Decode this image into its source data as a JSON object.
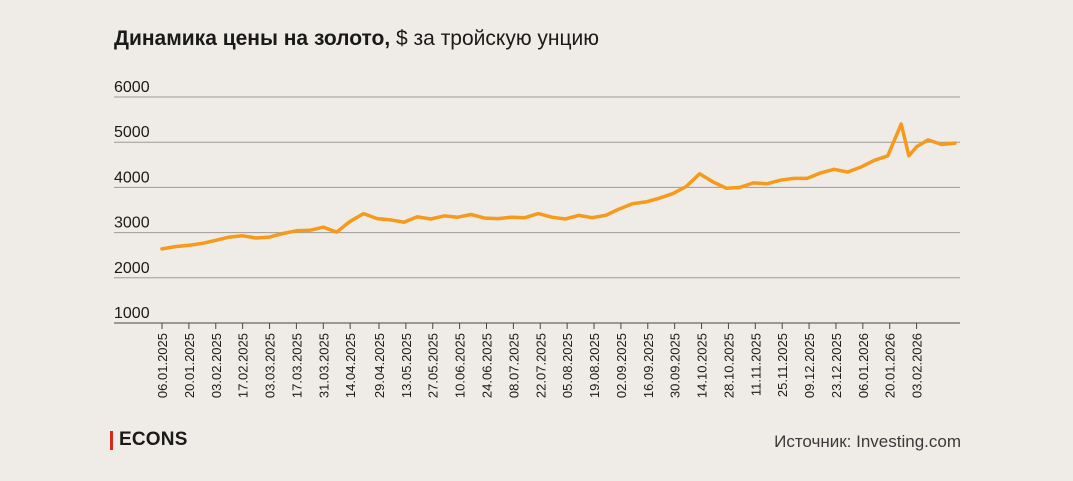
{
  "title_bold": "Динамика цены на золото,",
  "title_rest": " $ за тройскую унцию",
  "logo": "ECONS",
  "source": "Источник: Investing.com",
  "colors": {
    "line": "#f59a1b",
    "grid": "#9e9a95",
    "background": "#efebe6",
    "logo_bar": "#d42a1c"
  },
  "chart_data": {
    "type": "line",
    "title": "Динамика цены на золото, $ за тройскую унцию",
    "xlabel": "",
    "ylabel": "",
    "ylim": [
      1000,
      6000
    ],
    "yticks": [
      1000,
      2000,
      3000,
      4000,
      5000,
      6000
    ],
    "grid": true,
    "xlim": [
      "2025-01-06",
      "2026-02-23"
    ],
    "xticks": [
      "06.01.2025",
      "20.01.2025",
      "03.02.2025",
      "17.02.2025",
      "03.03.2025",
      "17.03.2025",
      "31.03.2025",
      "14.04.2025",
      "29.04.2025",
      "13.05.2025",
      "27.05.2025",
      "10.06.2025",
      "24.06.2025",
      "08.07.2025",
      "22.07.2025",
      "05.08.2025",
      "19.08.2025",
      "02.09.2025",
      "16.09.2025",
      "30.09.2025",
      "14.10.2025",
      "28.10.2025",
      "11.11.2025",
      "25.11.2025",
      "09.12.2025",
      "23.12.2025",
      "06.01.2026",
      "20.01.2026",
      "03.02.2026"
    ],
    "series": [
      {
        "x": [
          "2025-01-06",
          "2025-01-13",
          "2025-01-20",
          "2025-01-27",
          "2025-02-03",
          "2025-02-10",
          "2025-02-17",
          "2025-02-24",
          "2025-03-03",
          "2025-03-10",
          "2025-03-17",
          "2025-03-24",
          "2025-03-31",
          "2025-04-07",
          "2025-04-14",
          "2025-04-21",
          "2025-04-28",
          "2025-05-05",
          "2025-05-12",
          "2025-05-19",
          "2025-05-26",
          "2025-06-02",
          "2025-06-09",
          "2025-06-16",
          "2025-06-23",
          "2025-06-30",
          "2025-07-07",
          "2025-07-14",
          "2025-07-21",
          "2025-07-28",
          "2025-08-04",
          "2025-08-11",
          "2025-08-18",
          "2025-08-25",
          "2025-09-01",
          "2025-09-08",
          "2025-09-15",
          "2025-09-22",
          "2025-09-29",
          "2025-10-06",
          "2025-10-13",
          "2025-10-20",
          "2025-10-27",
          "2025-11-03",
          "2025-11-10",
          "2025-11-17",
          "2025-11-24",
          "2025-12-01",
          "2025-12-08",
          "2025-12-15",
          "2025-12-22",
          "2025-12-29",
          "2026-01-05",
          "2026-01-12",
          "2026-01-19",
          "2026-01-26",
          "2026-01-30",
          "2026-02-03",
          "2026-02-09",
          "2026-02-16",
          "2026-02-23"
        ],
        "values": [
          2640,
          2690,
          2720,
          2760,
          2830,
          2900,
          2930,
          2880,
          2900,
          2980,
          3040,
          3050,
          3120,
          3010,
          3250,
          3420,
          3310,
          3280,
          3230,
          3350,
          3300,
          3370,
          3340,
          3400,
          3320,
          3310,
          3340,
          3330,
          3420,
          3340,
          3300,
          3380,
          3330,
          3380,
          3520,
          3640,
          3680,
          3760,
          3860,
          4020,
          4300,
          4120,
          3980,
          4000,
          4100,
          4080,
          4160,
          4200,
          4200,
          4320,
          4400,
          4340,
          4450,
          4600,
          4700,
          5400,
          4700,
          4900,
          5050,
          4950,
          4980
        ]
      }
    ]
  }
}
